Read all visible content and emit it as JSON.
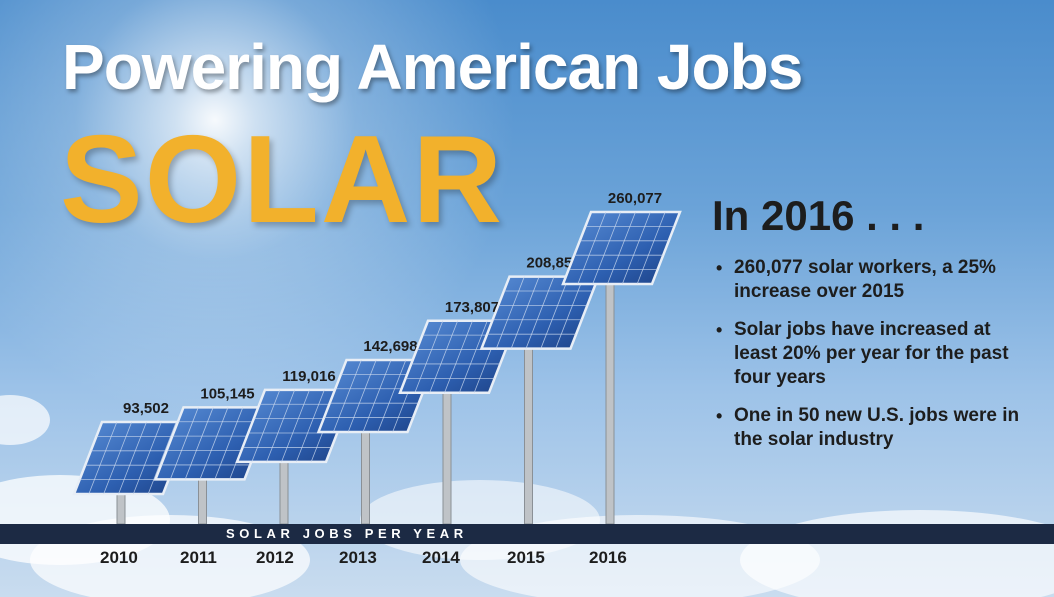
{
  "title": "Powering American Jobs",
  "subtitle": "SOLAR",
  "facts_heading": "In 2016 . . .",
  "facts": [
    "260,077 solar workers, a 25% increase over 2015",
    "Solar jobs have increased at least 20% per year for the past four years",
    "One in 50 new U.S. jobs were in the solar industry"
  ],
  "colors": {
    "title": "#ffffff",
    "subtitle": "#f2b12c",
    "text": "#1d1d1d",
    "banner": "#1c2a44",
    "panel": "#2d5fb0",
    "pole": "#bfc3c7"
  },
  "chart_data": {
    "type": "bar",
    "title": "SOLAR JOBS PER YEAR",
    "categories": [
      "2010",
      "2011",
      "2012",
      "2013",
      "2014",
      "2015",
      "2016"
    ],
    "values": [
      93502,
      105145,
      119016,
      142698,
      173807,
      208859,
      260077
    ],
    "value_labels": [
      "93,502",
      "105,145",
      "119,016",
      "142,698",
      "173,807",
      "208,859",
      "260,077"
    ],
    "mark": "solar panel on pole",
    "xlabel": "",
    "ylabel": "",
    "grid": false
  }
}
